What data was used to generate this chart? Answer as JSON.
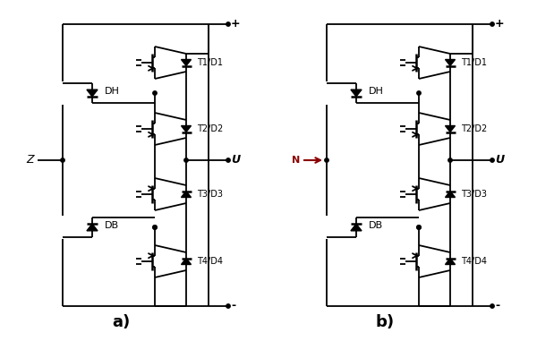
{
  "bg_color": "#ffffff",
  "line_color": "#000000",
  "circuit_a_label": "a)",
  "circuit_b_label": "b)",
  "plus_label": "+",
  "minus_label": "-",
  "output_label": "U",
  "input_label_a": "Z",
  "input_label_b": "N",
  "dh_label": "DH",
  "db_label": "DB",
  "t1d1_label": "T1/D1",
  "t2d2_label": "T2/D2",
  "t3d3_label": "T3/D3",
  "t4d4_label": "T4/D4"
}
